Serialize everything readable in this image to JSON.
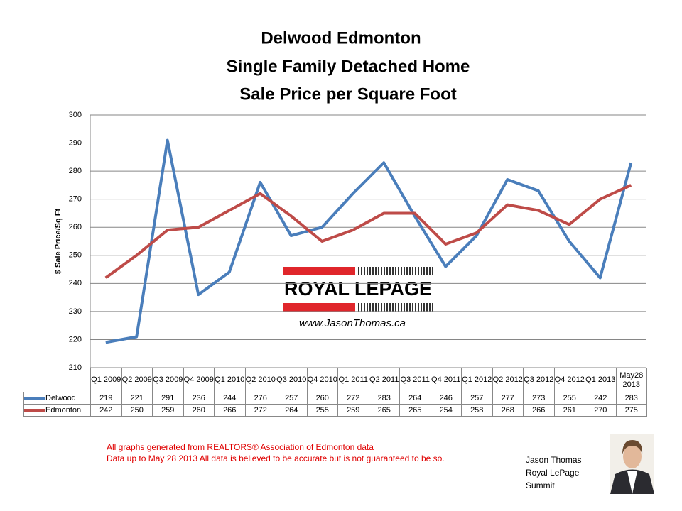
{
  "chart_data": {
    "type": "line",
    "title": [
      "Delwood Edmonton",
      "Single Family Detached Home",
      "Sale Price per Square Foot"
    ],
    "y_label": "$ Sale Price/Sq Ft",
    "categories": [
      "Q1 2009",
      "Q2 2009",
      "Q3 2009",
      "Q4 2009",
      "Q1 2010",
      "Q2 2010",
      "Q3 2010",
      "Q4 2010",
      "Q1 2011",
      "Q2 2011",
      "Q3 2011",
      "Q4 2011",
      "Q1 2012",
      "Q2 2012",
      "Q3 2012",
      "Q4 2012",
      "Q1 2013",
      "May28 2013"
    ],
    "series": [
      {
        "name": "Delwood",
        "color": "#4a7ebb",
        "values": [
          219,
          221,
          291,
          236,
          244,
          276,
          257,
          260,
          272,
          283,
          264,
          246,
          257,
          277,
          273,
          255,
          242,
          283
        ]
      },
      {
        "name": "Edmonton",
        "color": "#be4b48",
        "values": [
          242,
          250,
          259,
          260,
          266,
          272,
          264,
          255,
          259,
          265,
          265,
          254,
          258,
          268,
          266,
          261,
          270,
          275
        ]
      }
    ],
    "ylim": [
      210,
      300
    ],
    "yticks": [
      210,
      220,
      230,
      240,
      250,
      260,
      270,
      280,
      290,
      300
    ],
    "grid": true
  },
  "logo": {
    "brand": "ROYAL LEPAGE",
    "website": "www.JasonThomas.ca"
  },
  "notes": [
    "All graphs generated from REALTORS® Association of Edmonton data",
    "Data up to  May 28 2013  All data is believed to be accurate but is not guaranteed to be so."
  ],
  "author": [
    "Jason Thomas",
    "Royal LePage",
    "Summit"
  ]
}
